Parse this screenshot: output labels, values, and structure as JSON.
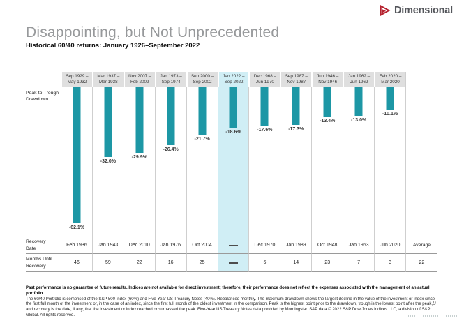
{
  "brand": {
    "name": "Dimensional",
    "logo_color": "#B5212E"
  },
  "header": {
    "title": "Disappointing, but Not Unprecedented",
    "subtitle": "Historical 60/40 returns: January 1926–September 2022"
  },
  "chart_data": {
    "type": "bar",
    "title": "Peak-to-Trough Drawdown",
    "subtitle": "Historical 60/40 returns: January 1926–September 2022",
    "orientation": "vertical-downward",
    "unit": "%",
    "ylim": [
      -65,
      0
    ],
    "grid": "column separators only, no value axis shown",
    "legend": "none",
    "categories": [
      "Sep 1929 – May 1932",
      "Mar 1937 – Mar 1938",
      "Nov 2007 – Feb 2009",
      "Jan 1973 – Sep 1974",
      "Sep 2000 – Sep 2002",
      "Jan 2022 – Sep 2022",
      "Dec 1968 – Jun 1970",
      "Sep 1987 – Nov 1987",
      "Jun 1946 – Nov 1946",
      "Jan 1962 – Jun 1962",
      "Feb 2020 – Mar 2020"
    ],
    "series": [
      {
        "name": "Peak-to-Trough Drawdown (%)",
        "values": [
          -62.1,
          -32.0,
          -29.9,
          -26.4,
          -21.7,
          -18.6,
          -17.6,
          -17.3,
          -13.4,
          -13.0,
          -10.1
        ]
      }
    ],
    "value_labels": [
      "-62.1%",
      "-32.0%",
      "-29.9%",
      "-26.4%",
      "-21.7%",
      "-18.6%",
      "-17.6%",
      "-17.3%",
      "-13.4%",
      "-13.0%",
      "-10.1%"
    ],
    "recovery_dates": [
      "Feb 1936",
      "Jan 1943",
      "Dec 2010",
      "Jan 1976",
      "Oct 2004",
      "—",
      "Dec 1970",
      "Jan 1989",
      "Oct 1948",
      "Jan 1963",
      "Jun 2020"
    ],
    "months_until_recovery": [
      "46",
      "59",
      "22",
      "16",
      "25",
      "—",
      "6",
      "14",
      "23",
      "7",
      "3"
    ],
    "average_label": "Average",
    "average_months_until_recovery": "22",
    "highlighted_category": "Jan 2022 – Sep 2022",
    "highlight_index": 5,
    "bar_color": "#1D97A5",
    "highlight_color": "#D0EEF5"
  },
  "table": {
    "row_labels": {
      "drawdown": [
        "Peak-to-Trough",
        "Drawdown"
      ],
      "recovery": [
        "Recovery",
        "Date"
      ],
      "months": [
        "Months Until",
        "Recovery"
      ]
    }
  },
  "footer": {
    "disclosure_bold": "Past performance is no guarantee of future results. Indices are not available for direct investment; therefore, their performance does not reflect the expenses associated with the management of an actual portfolio.",
    "disclosure_body": "The 60/40 Portfolio is comprised of the S&P 500 Index (60%) and Five-Year US Treasury Notes (40%). Rebalanced monthly. The maximum drawdown shows the largest decline in the value of the investment or index since the first full month of the investment or, in the case of an index, since the first full month of the oldest investment in the comparison. Peak is the highest point prior to the drawdown, trough is the lowest point after the peak, and recovery is the date, if any, that the investment or index reached or surpassed the peak. Five-Year US Treasury Notes data provided by Morningstar. S&P data © 2022 S&P Dow Jones Indices LLC, a division of S&P Global. All rights reserved.",
    "page_number": "9"
  }
}
